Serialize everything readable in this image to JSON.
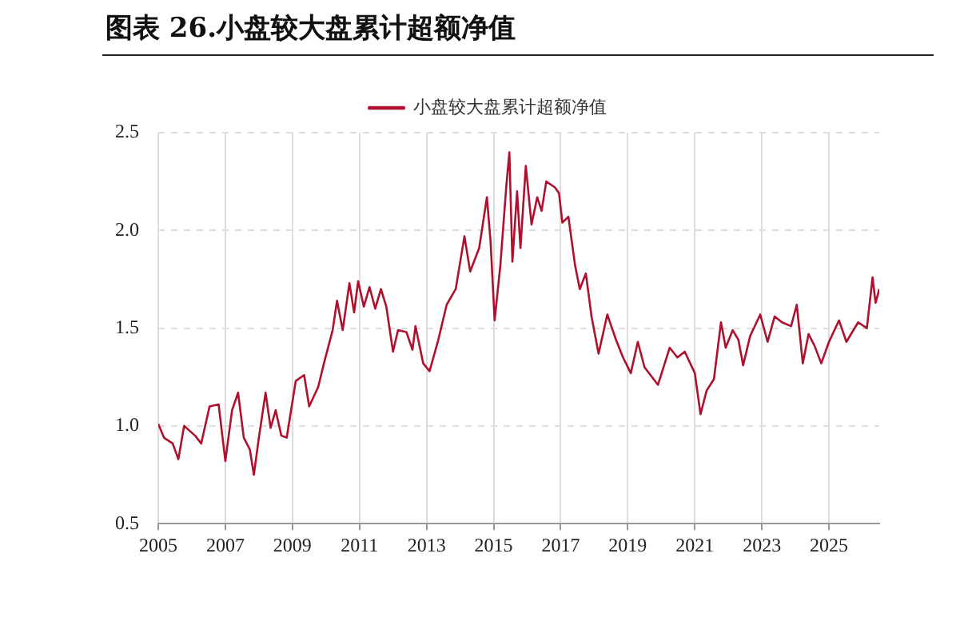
{
  "chart_data": {
    "type": "line",
    "title": "图表 26.小盘较大盘累计超额净值",
    "legend": "top",
    "grid": true,
    "marker": "none",
    "xlim": [
      2005,
      2026.5
    ],
    "xticks": [
      2005,
      2007,
      2009,
      2011,
      2013,
      2015,
      2017,
      2019,
      2021,
      2023,
      2025
    ],
    "ylim": [
      0.5,
      2.5
    ],
    "yticks": [
      {
        "value": 0.5,
        "label": "0.5"
      },
      {
        "value": 1,
        "label": "1.0"
      },
      {
        "value": 1.5,
        "label": "1.5"
      },
      {
        "value": 2,
        "label": "2.0"
      },
      {
        "value": 2.5,
        "label": "2.5"
      }
    ],
    "series": [
      {
        "name": "小盘较大盘累计超额净值",
        "color": "#b0102e",
        "x": [
          2005.0,
          2005.17,
          2005.43,
          2005.6,
          2005.77,
          2006.1,
          2006.28,
          2006.53,
          2006.8,
          2007.0,
          2007.2,
          2007.38,
          2007.55,
          2007.73,
          2007.85,
          2008.0,
          2008.2,
          2008.35,
          2008.5,
          2008.67,
          2008.83,
          2009.1,
          2009.35,
          2009.5,
          2009.77,
          2009.94,
          2010.2,
          2010.33,
          2010.5,
          2010.7,
          2010.84,
          2010.96,
          2011.13,
          2011.3,
          2011.47,
          2011.64,
          2011.8,
          2012.0,
          2012.15,
          2012.4,
          2012.58,
          2012.67,
          2012.9,
          2013.09,
          2013.35,
          2013.6,
          2013.87,
          2014.13,
          2014.3,
          2014.57,
          2014.8,
          2014.91,
          2015.03,
          2015.2,
          2015.38,
          2015.47,
          2015.56,
          2015.7,
          2015.8,
          2015.96,
          2016.13,
          2016.3,
          2016.43,
          2016.57,
          2016.83,
          2016.95,
          2017.05,
          2017.23,
          2017.43,
          2017.57,
          2017.75,
          2017.92,
          2018.13,
          2018.39,
          2018.65,
          2018.86,
          2019.09,
          2019.3,
          2019.5,
          2019.9,
          2020.25,
          2020.48,
          2020.7,
          2021.0,
          2021.17,
          2021.35,
          2021.57,
          2021.78,
          2021.92,
          2022.13,
          2022.3,
          2022.44,
          2022.65,
          2022.95,
          2023.17,
          2023.38,
          2023.6,
          2023.87,
          2024.04,
          2024.22,
          2024.39,
          2024.57,
          2024.77,
          2025.0,
          2025.3,
          2025.52,
          2025.87,
          2026.13,
          2026.3,
          2026.39,
          2026.5
        ],
        "values": [
          1.01,
          0.94,
          0.91,
          0.83,
          1.0,
          0.95,
          0.91,
          1.1,
          1.11,
          0.82,
          1.08,
          1.17,
          0.94,
          0.88,
          0.75,
          0.94,
          1.17,
          0.99,
          1.08,
          0.95,
          0.94,
          1.23,
          1.26,
          1.1,
          1.2,
          1.32,
          1.49,
          1.64,
          1.49,
          1.73,
          1.58,
          1.74,
          1.61,
          1.71,
          1.6,
          1.7,
          1.61,
          1.38,
          1.49,
          1.48,
          1.39,
          1.51,
          1.32,
          1.28,
          1.44,
          1.62,
          1.7,
          1.97,
          1.79,
          1.91,
          2.17,
          1.94,
          1.54,
          1.82,
          2.23,
          2.4,
          1.84,
          2.2,
          1.91,
          2.33,
          2.03,
          2.17,
          2.1,
          2.25,
          2.22,
          2.19,
          2.04,
          2.07,
          1.82,
          1.7,
          1.78,
          1.56,
          1.37,
          1.57,
          1.44,
          1.35,
          1.27,
          1.43,
          1.3,
          1.21,
          1.4,
          1.35,
          1.38,
          1.27,
          1.06,
          1.18,
          1.24,
          1.53,
          1.4,
          1.49,
          1.44,
          1.31,
          1.46,
          1.57,
          1.43,
          1.56,
          1.53,
          1.51,
          1.62,
          1.32,
          1.47,
          1.41,
          1.32,
          1.43,
          1.54,
          1.43,
          1.53,
          1.5,
          1.76,
          1.63,
          1.7
        ]
      }
    ]
  }
}
